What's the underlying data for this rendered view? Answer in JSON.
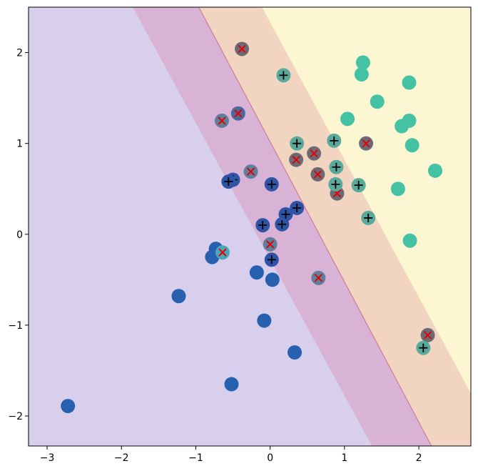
{
  "chart_data": {
    "type": "scatter",
    "title": "",
    "xlabel": "",
    "ylabel": "",
    "xlim": [
      -3.25,
      2.7
    ],
    "ylim": [
      -2.33,
      2.5
    ],
    "grid": false,
    "x_ticks": [
      -3,
      -2,
      -1,
      0,
      1,
      2
    ],
    "x_tick_labels": [
      "−3",
      "−2",
      "−1",
      "0",
      "1",
      "2"
    ],
    "y_ticks": [
      -2,
      -1,
      0,
      1,
      2
    ],
    "y_tick_labels": [
      "−2",
      "−1",
      "0",
      "1",
      "2"
    ],
    "regions": [
      {
        "name": "region-1",
        "color": "#d7cfec",
        "boundary": [
          [
            -1.85,
            2.5
          ],
          [
            1.37,
            -2.33
          ]
        ]
      },
      {
        "name": "region-2",
        "color": "#d9b3d6",
        "boundary": [
          [
            -0.96,
            2.5
          ],
          [
            2.17,
            -2.33
          ]
        ]
      },
      {
        "name": "region-3",
        "color": "#f2d5c1",
        "boundary": [
          [
            -0.11,
            2.5
          ],
          [
            2.7,
            -1.75
          ]
        ]
      },
      {
        "name": "region-4",
        "color": "#fdf6d3",
        "boundary": null
      }
    ],
    "points": [
      {
        "x": -2.72,
        "y": -1.89,
        "color": "#2660ae",
        "marker": null
      },
      {
        "x": -1.23,
        "y": -0.68,
        "color": "#2660ae",
        "marker": null
      },
      {
        "x": -0.52,
        "y": -1.65,
        "color": "#2660ae",
        "marker": null
      },
      {
        "x": -0.08,
        "y": -0.95,
        "color": "#2660ae",
        "marker": null
      },
      {
        "x": 0.33,
        "y": -1.3,
        "color": "#2660ae",
        "marker": null
      },
      {
        "x": -0.18,
        "y": -0.42,
        "color": "#2660ae",
        "marker": null
      },
      {
        "x": 0.03,
        "y": -0.5,
        "color": "#2660ae",
        "marker": null
      },
      {
        "x": -0.73,
        "y": -0.16,
        "color": "#2660ae",
        "marker": null
      },
      {
        "x": -0.78,
        "y": -0.25,
        "color": "#2660ae",
        "marker": null
      },
      {
        "x": -0.5,
        "y": 0.6,
        "color": "#2e55a5",
        "marker": "+"
      },
      {
        "x": -0.56,
        "y": 0.58,
        "color": "#2e55a5",
        "marker": "+"
      },
      {
        "x": 0.02,
        "y": 0.55,
        "color": "#2e55a5",
        "marker": "+"
      },
      {
        "x": -0.1,
        "y": 0.1,
        "color": "#2e55a5",
        "marker": "+"
      },
      {
        "x": 0.16,
        "y": 0.11,
        "color": "#2e55a5",
        "marker": "+"
      },
      {
        "x": 0.21,
        "y": 0.22,
        "color": "#2e55a5",
        "marker": "+"
      },
      {
        "x": 0.36,
        "y": 0.29,
        "color": "#2e55a5",
        "marker": "+"
      },
      {
        "x": 0.02,
        "y": -0.28,
        "color": "#2e55a5",
        "marker": "+"
      },
      {
        "x": -0.64,
        "y": -0.2,
        "color": "#4aa8b8",
        "marker": "x"
      },
      {
        "x": 0.0,
        "y": -0.11,
        "color": "#5f7f9c",
        "marker": "x"
      },
      {
        "x": 0.65,
        "y": -0.48,
        "color": "#5f7f9c",
        "marker": "x"
      },
      {
        "x": -0.26,
        "y": 0.69,
        "color": "#5f7f9c",
        "marker": "x"
      },
      {
        "x": -0.65,
        "y": 1.25,
        "color": "#5f7f9c",
        "marker": "x"
      },
      {
        "x": -0.43,
        "y": 1.33,
        "color": "#4a6a9c",
        "marker": "x"
      },
      {
        "x": -0.38,
        "y": 2.04,
        "color": "#6b6b75",
        "marker": "x"
      },
      {
        "x": 0.35,
        "y": 0.82,
        "color": "#6b6b75",
        "marker": "x"
      },
      {
        "x": 0.59,
        "y": 0.89,
        "color": "#6b6b75",
        "marker": "x"
      },
      {
        "x": 0.64,
        "y": 0.66,
        "color": "#6b6b75",
        "marker": "x"
      },
      {
        "x": 0.9,
        "y": 0.45,
        "color": "#6b6b75",
        "marker": "x"
      },
      {
        "x": 1.29,
        "y": 1.0,
        "color": "#6b6b75",
        "marker": "x"
      },
      {
        "x": 2.12,
        "y": -1.11,
        "color": "#6b6b75",
        "marker": "x"
      },
      {
        "x": 0.18,
        "y": 1.75,
        "color": "#5aaa9c",
        "marker": "+"
      },
      {
        "x": 0.36,
        "y": 1.0,
        "color": "#5aaa9c",
        "marker": "+"
      },
      {
        "x": 0.86,
        "y": 1.03,
        "color": "#5aaa9c",
        "marker": "+"
      },
      {
        "x": 0.89,
        "y": 0.74,
        "color": "#5aaa9c",
        "marker": "+"
      },
      {
        "x": 0.88,
        "y": 0.55,
        "color": "#5aaa9c",
        "marker": "+"
      },
      {
        "x": 1.19,
        "y": 0.54,
        "color": "#5aaa9c",
        "marker": "+"
      },
      {
        "x": 1.32,
        "y": 0.18,
        "color": "#5aaa9c",
        "marker": "+"
      },
      {
        "x": 2.06,
        "y": -1.25,
        "color": "#5aaa9c",
        "marker": "+"
      },
      {
        "x": 1.25,
        "y": 1.89,
        "color": "#45c2a3",
        "marker": null
      },
      {
        "x": 1.23,
        "y": 1.76,
        "color": "#45c2a3",
        "marker": null
      },
      {
        "x": 1.87,
        "y": 1.67,
        "color": "#45c2a3",
        "marker": null
      },
      {
        "x": 1.44,
        "y": 1.46,
        "color": "#45c2a3",
        "marker": null
      },
      {
        "x": 1.04,
        "y": 1.27,
        "color": "#45c2a3",
        "marker": null
      },
      {
        "x": 1.87,
        "y": 1.25,
        "color": "#45c2a3",
        "marker": null
      },
      {
        "x": 1.77,
        "y": 1.19,
        "color": "#45c2a3",
        "marker": null
      },
      {
        "x": 1.91,
        "y": 0.98,
        "color": "#45c2a3",
        "marker": null
      },
      {
        "x": 2.22,
        "y": 0.7,
        "color": "#45c2a3",
        "marker": null
      },
      {
        "x": 1.72,
        "y": 0.5,
        "color": "#45c2a3",
        "marker": null
      },
      {
        "x": 1.88,
        "y": -0.07,
        "color": "#45c2a3",
        "marker": null
      }
    ]
  }
}
